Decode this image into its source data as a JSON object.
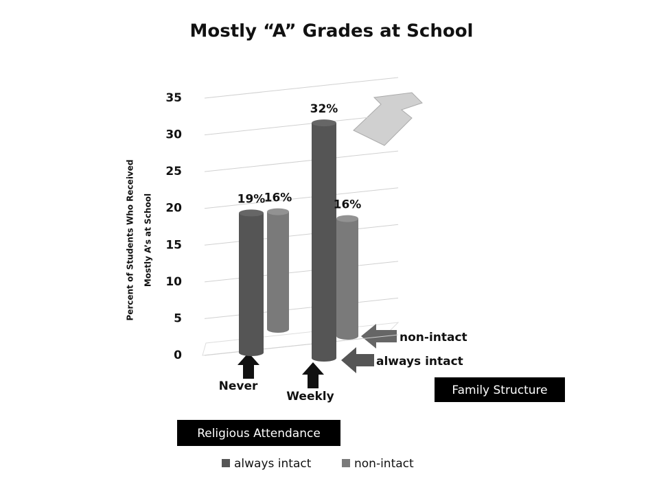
{
  "chart_data": {
    "type": "bar",
    "title": "Mostly “A” Grades at School",
    "y_label": [
      "Percent of Students Who Received",
      "Mostly A’s  at School"
    ],
    "categories": [
      "Never",
      "Weekly"
    ],
    "series": [
      {
        "name": "always intact",
        "color": "#555555",
        "values": [
          19,
          32
        ],
        "value_labels": [
          "19%",
          "32%"
        ]
      },
      {
        "name": "non-intact",
        "color": "#7a7a7a",
        "values": [
          16,
          16
        ],
        "value_labels": [
          "16%",
          "16%"
        ]
      }
    ],
    "ylim": [
      0,
      35
    ],
    "yticks": [
      0,
      5,
      10,
      15,
      20,
      25,
      30,
      35
    ],
    "grid": true,
    "legend": "bottom",
    "annotations": [
      "non-intact",
      "always intact",
      "Family Structure",
      "Religious Attendance"
    ]
  }
}
